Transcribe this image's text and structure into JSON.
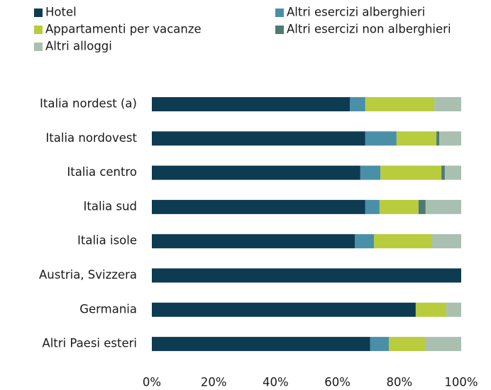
{
  "chart_data": {
    "type": "stacked_barh",
    "categories": [
      "Italia nordest (a)",
      "Italia nordovest",
      "Italia centro",
      "Italia sud",
      "Italia isole",
      "Austria, Svizzera",
      "Germania",
      "Altri Paesi esteri"
    ],
    "series": [
      {
        "name": "Hotel",
        "color": "#0d3b52",
        "values": [
          64.0,
          69.0,
          67.4,
          69.0,
          65.6,
          100,
          85.3,
          70.6
        ]
      },
      {
        "name": "Altri esercizi alberghieri",
        "color": "#4a8fa8",
        "values": [
          5.0,
          10.1,
          6.5,
          4.6,
          6.2,
          0,
          0,
          6.0
        ]
      },
      {
        "name": "Appartamenti per vacanze",
        "color": "#b8cc3e",
        "values": [
          22.3,
          12.9,
          19.7,
          12.6,
          18.8,
          0,
          9.9,
          11.7
        ]
      },
      {
        "name": "Altri esercizi non alberghieri",
        "color": "#4e7a72",
        "values": [
          0,
          0.9,
          1.1,
          2.3,
          0,
          0,
          0,
          0
        ]
      },
      {
        "name": "Altri alloggi",
        "color": "#a9c0b0",
        "values": [
          8.7,
          7.1,
          5.3,
          11.5,
          9.4,
          0,
          4.8,
          11.7
        ]
      }
    ],
    "xlim": [
      0,
      100
    ],
    "xticks": [
      {
        "value": 0,
        "label": "0%"
      },
      {
        "value": 20,
        "label": "20%"
      },
      {
        "value": 40,
        "label": "40%"
      },
      {
        "value": 60,
        "label": "60%"
      },
      {
        "value": 80,
        "label": "80%"
      },
      {
        "value": 100,
        "label": "100%"
      }
    ]
  }
}
